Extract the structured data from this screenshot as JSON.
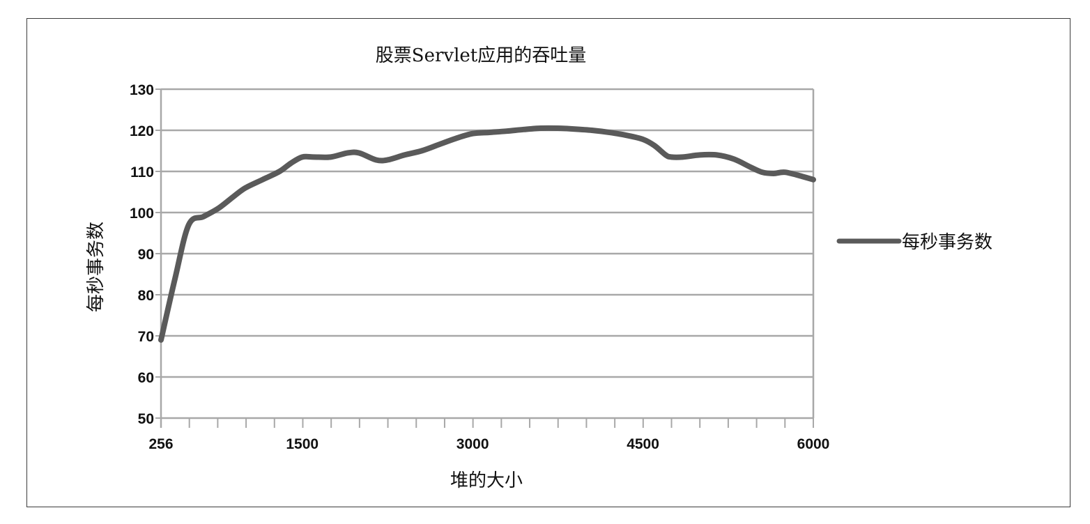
{
  "chart_data": {
    "type": "line",
    "title": "股票Servlet应用的吞吐量",
    "xlabel": "堆的大小",
    "ylabel": "每秒事务数",
    "xlim": [
      256,
      6000
    ],
    "ylim": [
      50,
      130
    ],
    "x_ticks": [
      256,
      1500,
      3000,
      4500,
      6000
    ],
    "x_tick_labels": [
      "256",
      "1500",
      "3000",
      "4500",
      "6000"
    ],
    "y_ticks": [
      50,
      60,
      70,
      80,
      90,
      100,
      110,
      120,
      130
    ],
    "y_tick_labels": [
      "50",
      "60",
      "70",
      "80",
      "90",
      "100",
      "110",
      "120",
      "130"
    ],
    "grid": true,
    "legend": "right",
    "series": [
      {
        "name": "每秒事务数",
        "color": "#5a5a5a",
        "x": [
          256,
          380,
          500,
          630,
          760,
          900,
          1000,
          1150,
          1300,
          1400,
          1500,
          1600,
          1750,
          1900,
          2000,
          2150,
          2250,
          2400,
          2550,
          2700,
          2850,
          3000,
          3150,
          3300,
          3450,
          3600,
          3750,
          3900,
          4050,
          4200,
          4350,
          4500,
          4600,
          4700,
          4750,
          4850,
          5000,
          5150,
          5300,
          5450,
          5550,
          5650,
          5750,
          5900,
          6000
        ],
        "values": [
          69,
          84,
          97,
          99,
          101,
          104,
          106,
          108,
          110,
          112,
          113.5,
          113.5,
          113.5,
          114.5,
          114.5,
          112.8,
          112.8,
          114,
          115,
          116.5,
          118,
          119.2,
          119.5,
          119.8,
          120.2,
          120.5,
          120.5,
          120.3,
          120,
          119.5,
          118.8,
          117.8,
          116.3,
          114,
          113.5,
          113.5,
          114,
          114,
          113,
          111,
          109.8,
          109.5,
          109.8,
          108.8,
          108
        ]
      }
    ]
  }
}
